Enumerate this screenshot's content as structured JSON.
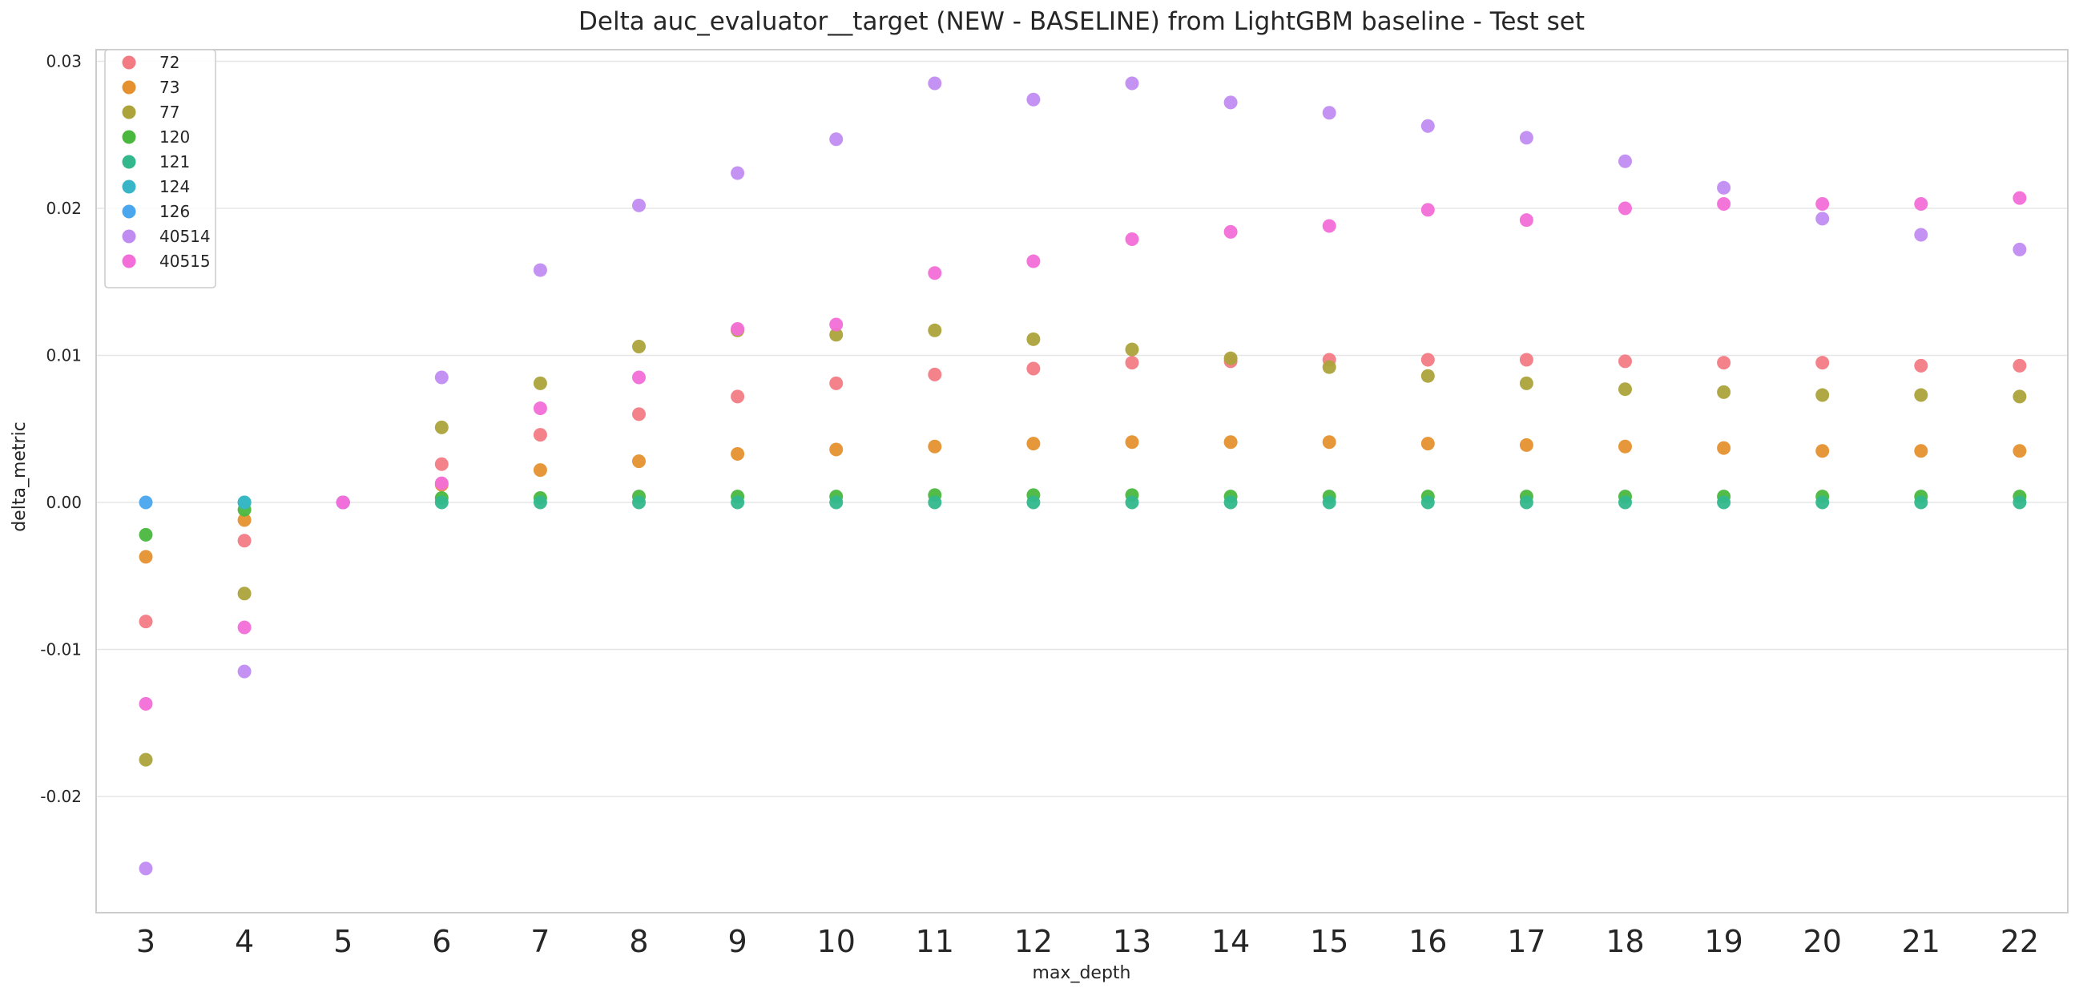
{
  "chart_data": {
    "type": "scatter",
    "title": "Delta auc_evaluator__target (NEW - BASELINE) from LightGBM baseline - Test set",
    "xlabel": "max_depth",
    "ylabel": "delta_metric",
    "categories": [
      "3",
      "4",
      "5",
      "6",
      "7",
      "8",
      "9",
      "10",
      "11",
      "12",
      "13",
      "14",
      "15",
      "16",
      "17",
      "18",
      "19",
      "20",
      "21",
      "22"
    ],
    "ylim": [
      -0.0278,
      0.0315
    ],
    "yticks": [
      -0.02,
      -0.01,
      0.0,
      0.01,
      0.02,
      0.03
    ],
    "ytick_labels": [
      "-0.02",
      "-0.01",
      "0.00",
      "0.01",
      "0.02",
      "0.03"
    ],
    "grid": "horizontal",
    "legend_position": "top-left",
    "series": [
      {
        "name": "72",
        "color": "#f37b84",
        "values": [
          -0.0081,
          -0.0026,
          0.0,
          0.0026,
          0.0046,
          0.006,
          0.0072,
          0.0081,
          0.0087,
          0.0091,
          0.0095,
          0.0096,
          0.0097,
          0.0097,
          0.0097,
          0.0096,
          0.0095,
          0.0095,
          0.0093,
          0.0093
        ]
      },
      {
        "name": "73",
        "color": "#e5912f",
        "values": [
          -0.0037,
          -0.0012,
          0.0,
          0.0012,
          0.0022,
          0.0028,
          0.0033,
          0.0036,
          0.0038,
          0.004,
          0.0041,
          0.0041,
          0.0041,
          0.004,
          0.0039,
          0.0038,
          0.0037,
          0.0035,
          0.0035,
          0.0035
        ]
      },
      {
        "name": "77",
        "color": "#aca33a",
        "values": [
          -0.0175,
          -0.0062,
          0.0,
          0.0051,
          0.0081,
          0.0106,
          0.0117,
          0.0114,
          0.0117,
          0.0111,
          0.0104,
          0.0098,
          0.0092,
          0.0086,
          0.0081,
          0.0077,
          0.0075,
          0.0073,
          0.0073,
          0.0072
        ]
      },
      {
        "name": "120",
        "color": "#4ab83f",
        "values": [
          -0.0022,
          -0.0005,
          0.0,
          0.0003,
          0.0003,
          0.0004,
          0.0004,
          0.0004,
          0.0005,
          0.0005,
          0.0005,
          0.0004,
          0.0004,
          0.0004,
          0.0004,
          0.0004,
          0.0004,
          0.0004,
          0.0004,
          0.0004
        ]
      },
      {
        "name": "121",
        "color": "#33b88e",
        "values": [
          null,
          0.0,
          0.0,
          0.0,
          0.0,
          0.0,
          0.0,
          0.0,
          0.0,
          0.0,
          0.0,
          0.0,
          0.0,
          0.0,
          0.0,
          0.0,
          0.0,
          0.0,
          0.0,
          0.0
        ]
      },
      {
        "name": "124",
        "color": "#38b6c7",
        "values": [
          null,
          0.0,
          0.0,
          null,
          null,
          null,
          null,
          null,
          null,
          null,
          null,
          null,
          null,
          null,
          null,
          null,
          null,
          null,
          null,
          null
        ]
      },
      {
        "name": "126",
        "color": "#4aa7ee",
        "values": [
          0.0,
          null,
          0.0,
          null,
          null,
          null,
          null,
          null,
          null,
          null,
          null,
          null,
          null,
          null,
          null,
          null,
          null,
          null,
          null,
          null
        ]
      },
      {
        "name": "40514",
        "color": "#c18cf2",
        "values": [
          -0.0249,
          -0.0115,
          0.0,
          0.0085,
          0.0158,
          0.0202,
          0.0224,
          0.0247,
          0.0285,
          0.0274,
          0.0285,
          0.0272,
          0.0265,
          0.0256,
          0.0248,
          0.0232,
          0.0214,
          0.0193,
          0.0182,
          0.0172
        ]
      },
      {
        "name": "40515",
        "color": "#f36ed8",
        "values": [
          -0.0137,
          -0.0085,
          0.0,
          0.0013,
          0.0064,
          0.0085,
          0.0118,
          0.0121,
          0.0156,
          0.0164,
          0.0179,
          0.0184,
          0.0188,
          0.0199,
          0.0192,
          0.02,
          0.0203,
          0.0203,
          0.0203,
          0.0207
        ]
      }
    ]
  }
}
